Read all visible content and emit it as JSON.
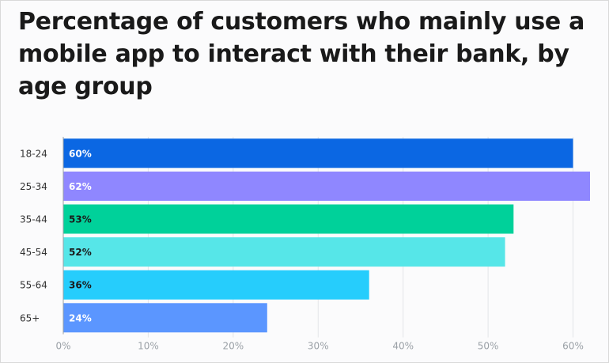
{
  "chart_data": {
    "type": "bar",
    "orientation": "horizontal",
    "title": "Percentage of customers who mainly use a mobile app to interact with their bank, by age group",
    "categories": [
      "18-24",
      "25-34",
      "35-44",
      "45-54",
      "55-64",
      "65+"
    ],
    "values": [
      60,
      62,
      53,
      52,
      36,
      24
    ],
    "value_labels": [
      "60%",
      "62%",
      "53%",
      "52%",
      "36%",
      "24%"
    ],
    "bar_colors": [
      "#0b67e3",
      "#8f87ff",
      "#00d19a",
      "#56e6e8",
      "#26cdfc",
      "#5b96ff"
    ],
    "label_colors": [
      "#ffffff",
      "#ffffff",
      "#1a1a1a",
      "#1a1a1a",
      "#1a1a1a",
      "#ffffff"
    ],
    "xlim": [
      0,
      62
    ],
    "x_ticks": [
      0,
      10,
      20,
      30,
      40,
      50,
      60
    ],
    "x_tick_labels": [
      "0%",
      "10%",
      "20%",
      "30%",
      "40%",
      "50%",
      "60%"
    ],
    "xlabel": "",
    "ylabel": "",
    "grid": true,
    "legend": "none"
  }
}
